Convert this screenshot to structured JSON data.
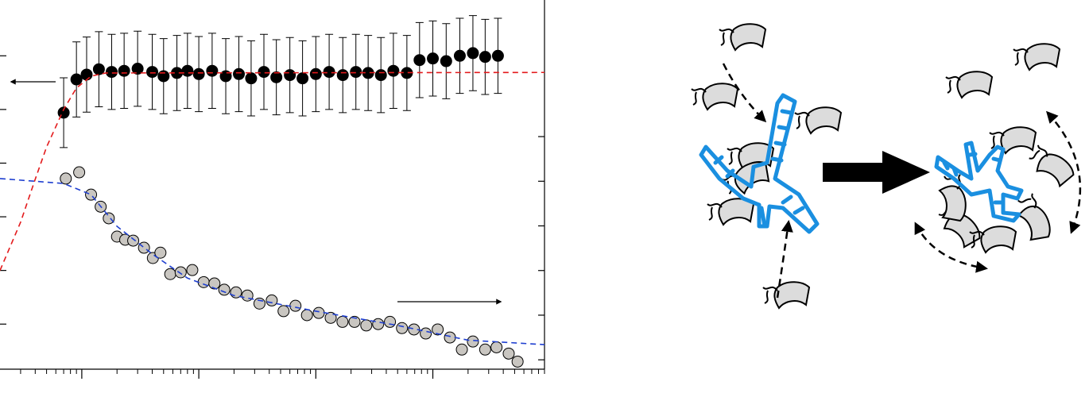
{
  "chart_data": {
    "type": "scatter",
    "xlog": true,
    "xlim": [
      0.2,
      9000
    ],
    "xticks": [
      1,
      10,
      100,
      1000
    ],
    "xminorticks": [
      0.3,
      0.4,
      0.5,
      0.6,
      0.7,
      0.8,
      0.9,
      2,
      3,
      4,
      5,
      6,
      7,
      8,
      9,
      20,
      30,
      40,
      50,
      60,
      70,
      80,
      90,
      200,
      300,
      400,
      500,
      600,
      700,
      800,
      900,
      2000,
      3000,
      4000,
      5000,
      6000,
      7000,
      8000,
      9000
    ],
    "ylim": [
      0.16,
      7.04
    ],
    "yticks": [
      1,
      2,
      3,
      4,
      5,
      6
    ],
    "y2lim": [
      0.79,
      9.06
    ],
    "y2ticks": [
      1,
      2,
      3,
      4,
      5,
      6
    ],
    "series": [
      {
        "mark": "point",
        "color": "#000000",
        "x": [
          0.7,
          0.9,
          1.1,
          1.4,
          1.8,
          2.3,
          3,
          4,
          5,
          6.5,
          8,
          10,
          13,
          17,
          22,
          28,
          36,
          46,
          60,
          77,
          100,
          130,
          170,
          220,
          280,
          360,
          460,
          600,
          770,
          1000,
          1300,
          1700,
          2200,
          2800,
          3600
        ],
        "values": [
          4.94,
          5.56,
          5.65,
          5.75,
          5.7,
          5.72,
          5.76,
          5.7,
          5.62,
          5.68,
          5.72,
          5.66,
          5.72,
          5.62,
          5.66,
          5.58,
          5.7,
          5.6,
          5.64,
          5.58,
          5.66,
          5.7,
          5.64,
          5.7,
          5.68,
          5.64,
          5.72,
          5.68,
          5.92,
          5.95,
          5.9,
          6.0,
          6.05,
          5.98,
          6.0
        ],
        "errors": [
          0.65,
          0.7,
          0.7,
          0.7,
          0.7,
          0.7,
          0.7,
          0.7,
          0.7,
          0.7,
          0.7,
          0.7,
          0.7,
          0.7,
          0.7,
          0.7,
          0.7,
          0.7,
          0.7,
          0.7,
          0.7,
          0.7,
          0.7,
          0.7,
          0.7,
          0.7,
          0.7,
          0.7,
          0.7,
          0.7,
          0.7,
          0.7,
          0.7,
          0.7,
          0.7
        ]
      },
      {
        "mark": "dashed-line",
        "color": "#e31a1c",
        "x": [
          0.2,
          0.3,
          0.4,
          0.5,
          0.7,
          0.9,
          1.2,
          1.6,
          9000
        ],
        "values": [
          2.0,
          2.9,
          3.7,
          4.3,
          5.0,
          5.4,
          5.62,
          5.68,
          5.69
        ]
      },
      {
        "mark": "point",
        "color": "#c9c6c1",
        "axis": "y2",
        "x": [
          0.73,
          0.95,
          1.2,
          1.45,
          1.7,
          2.0,
          2.35,
          2.75,
          3.4,
          4.05,
          4.7,
          5.7,
          7,
          8.8,
          11,
          13.6,
          16.5,
          20.8,
          26,
          33,
          42,
          53,
          67,
          84,
          106,
          134,
          169,
          214,
          270,
          341,
          430,
          545,
          690,
          870,
          1100,
          1400,
          1770,
          2200,
          2800,
          3500,
          4450,
          5300
        ],
        "values": [
          5.06,
          5.2,
          4.7,
          4.43,
          4.17,
          3.76,
          3.69,
          3.67,
          3.51,
          3.28,
          3.4,
          2.92,
          2.96,
          3.01,
          2.74,
          2.71,
          2.57,
          2.51,
          2.44,
          2.26,
          2.33,
          2.09,
          2.21,
          2.0,
          2.05,
          1.94,
          1.85,
          1.85,
          1.77,
          1.8,
          1.85,
          1.71,
          1.68,
          1.59,
          1.68,
          1.5,
          1.23,
          1.41,
          1.23,
          1.28,
          1.14,
          0.96
        ]
      },
      {
        "mark": "dashed-line",
        "color": "#1f3fd0",
        "axis": "y2",
        "x": [
          0.2,
          0.7,
          1.2,
          2,
          4,
          8,
          20,
          100,
          500,
          2000,
          9000
        ],
        "values": [
          5.06,
          4.95,
          4.7,
          3.99,
          3.37,
          2.83,
          2.44,
          2.09,
          1.77,
          1.44,
          1.34
        ]
      }
    ]
  }
}
